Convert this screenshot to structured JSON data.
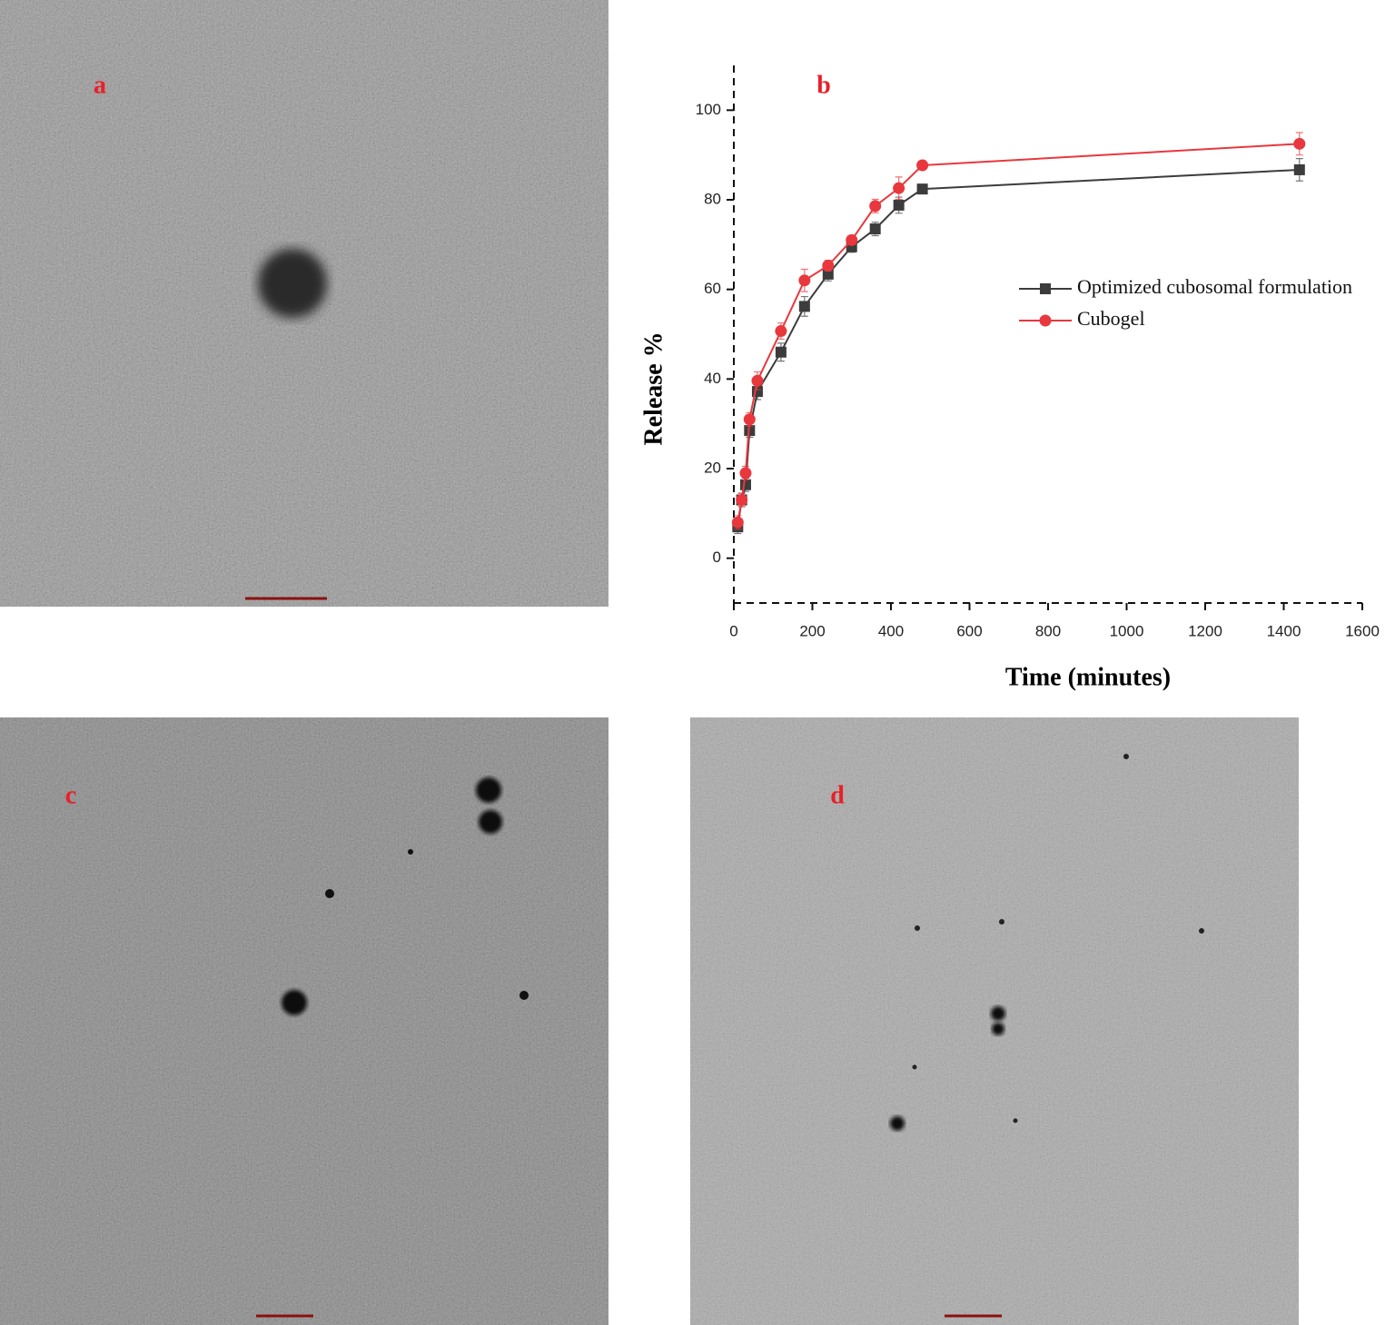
{
  "panels": [
    {
      "label": "a"
    },
    {
      "label": "c"
    },
    {
      "label": "d"
    }
  ],
  "chart_data": {
    "type": "line",
    "panel_label": "b",
    "x_label": "Time (minutes)",
    "y_label": "Release %",
    "x": [
      10,
      20,
      30,
      40,
      60,
      120,
      180,
      240,
      300,
      360,
      420,
      480,
      1440
    ],
    "series": [
      {
        "name": "Optimized cubosomal formulation",
        "color": "#3c3c3c",
        "marker": "square",
        "values": [
          7,
          13,
          16.4,
          28.5,
          37.2,
          46,
          56.2,
          63.4,
          69.5,
          73.5,
          78.8,
          82.4,
          86.7
        ],
        "errors": [
          1.5,
          1.5,
          1.5,
          1.5,
          1.8,
          2,
          2.2,
          1.5,
          1.2,
          1.5,
          1.8,
          1,
          2.5
        ]
      },
      {
        "name": "Cubogel",
        "color": "#e8383d",
        "marker": "circle",
        "values": [
          8,
          13,
          19,
          31,
          39.6,
          50.7,
          62,
          65.3,
          71,
          78.6,
          82.6,
          87.7,
          92.5
        ],
        "errors": [
          1.5,
          1.5,
          1.5,
          1.5,
          2,
          1.8,
          2.5,
          1.2,
          1,
          1.5,
          2.5,
          1,
          2.5
        ]
      }
    ],
    "xlim": [
      0,
      1600
    ],
    "xticks": [
      0,
      200,
      400,
      600,
      800,
      1000,
      1200,
      1400,
      1600
    ],
    "ylim": [
      -10,
      110
    ],
    "yticks": [
      0,
      20,
      40,
      60,
      80,
      100
    ],
    "legend": "right"
  }
}
